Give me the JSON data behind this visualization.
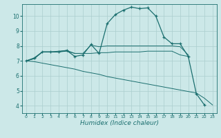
{
  "xlabel": "Humidex (Indice chaleur)",
  "bg_color": "#cce8e8",
  "line_color": "#1a6e6e",
  "grid_color": "#aacece",
  "xlim": [
    -0.5,
    23.5
  ],
  "ylim": [
    3.5,
    10.8
  ],
  "yticks": [
    4,
    5,
    6,
    7,
    8,
    9,
    10
  ],
  "xticks": [
    0,
    1,
    2,
    3,
    4,
    5,
    6,
    7,
    8,
    9,
    10,
    11,
    12,
    13,
    14,
    15,
    16,
    17,
    18,
    19,
    20,
    21,
    22,
    23
  ],
  "series1_x": [
    0,
    1,
    2,
    3,
    4,
    5,
    6,
    7,
    8,
    9,
    10,
    11,
    12,
    13,
    14,
    15,
    16,
    17,
    18,
    19,
    20,
    21,
    22
  ],
  "series1_y": [
    7.0,
    7.2,
    7.6,
    7.6,
    7.6,
    7.7,
    7.3,
    7.4,
    8.1,
    7.5,
    9.5,
    10.1,
    10.4,
    10.6,
    10.5,
    10.55,
    10.0,
    8.6,
    8.15,
    8.15,
    7.3,
    4.8,
    4.05
  ],
  "series2_x": [
    0,
    1,
    2,
    3,
    4,
    5,
    6,
    7,
    8,
    9,
    10,
    11,
    12,
    13,
    14,
    15,
    16,
    17,
    18,
    19,
    20
  ],
  "series2_y": [
    7.0,
    7.15,
    7.6,
    7.6,
    7.6,
    7.65,
    7.5,
    7.5,
    8.05,
    7.95,
    8.0,
    8.0,
    8.0,
    8.0,
    8.0,
    8.0,
    8.0,
    8.0,
    8.0,
    7.95,
    7.4
  ],
  "series3_x": [
    0,
    1,
    2,
    3,
    4,
    5,
    6,
    7,
    8,
    9,
    10,
    11,
    12,
    13,
    14,
    15,
    16,
    17,
    18,
    19,
    20
  ],
  "series3_y": [
    7.0,
    7.15,
    7.6,
    7.6,
    7.65,
    7.7,
    7.5,
    7.5,
    7.5,
    7.55,
    7.55,
    7.6,
    7.6,
    7.6,
    7.6,
    7.65,
    7.65,
    7.65,
    7.65,
    7.4,
    7.3
  ],
  "series4_x": [
    0,
    1,
    2,
    3,
    4,
    5,
    6,
    7,
    8,
    9,
    10,
    11,
    12,
    13,
    14,
    15,
    16,
    17,
    18,
    19,
    20,
    21,
    22,
    23
  ],
  "series4_y": [
    7.0,
    6.95,
    6.85,
    6.75,
    6.65,
    6.55,
    6.45,
    6.3,
    6.2,
    6.1,
    5.95,
    5.85,
    5.75,
    5.65,
    5.55,
    5.45,
    5.35,
    5.25,
    5.15,
    5.05,
    4.95,
    4.85,
    4.5,
    4.05
  ]
}
